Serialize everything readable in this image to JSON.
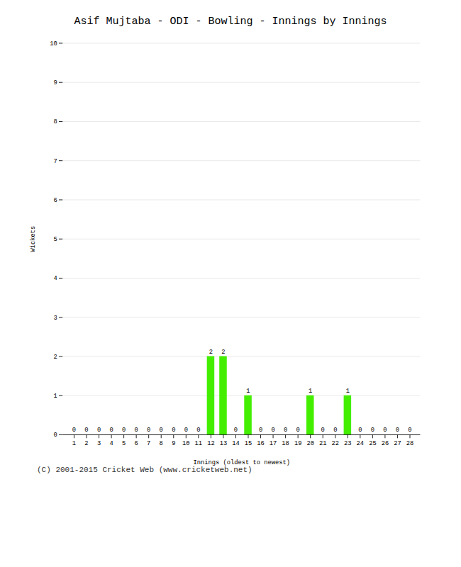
{
  "chart_data": {
    "type": "bar",
    "title": "Asif Mujtaba - ODI - Bowling - Innings by Innings",
    "xlabel": "Innings (oldest to newest)",
    "ylabel": "Wickets",
    "caption": "(C) 2001-2015 Cricket Web (www.cricketweb.net)",
    "categories": [
      "1",
      "2",
      "3",
      "4",
      "5",
      "6",
      "7",
      "8",
      "9",
      "10",
      "11",
      "12",
      "13",
      "14",
      "15",
      "16",
      "17",
      "18",
      "19",
      "20",
      "21",
      "22",
      "23",
      "24",
      "25",
      "26",
      "27",
      "28"
    ],
    "values": [
      0,
      0,
      0,
      0,
      0,
      0,
      0,
      0,
      0,
      0,
      0,
      2,
      2,
      0,
      1,
      0,
      0,
      0,
      0,
      1,
      0,
      0,
      1,
      0,
      0,
      0,
      0,
      0
    ],
    "color": "#44ee00",
    "ylim": [
      0,
      10
    ],
    "yticks": [
      0,
      1,
      2,
      3,
      4,
      5,
      6,
      7,
      8,
      9,
      10
    ],
    "grid": true,
    "data_labels": true
  }
}
